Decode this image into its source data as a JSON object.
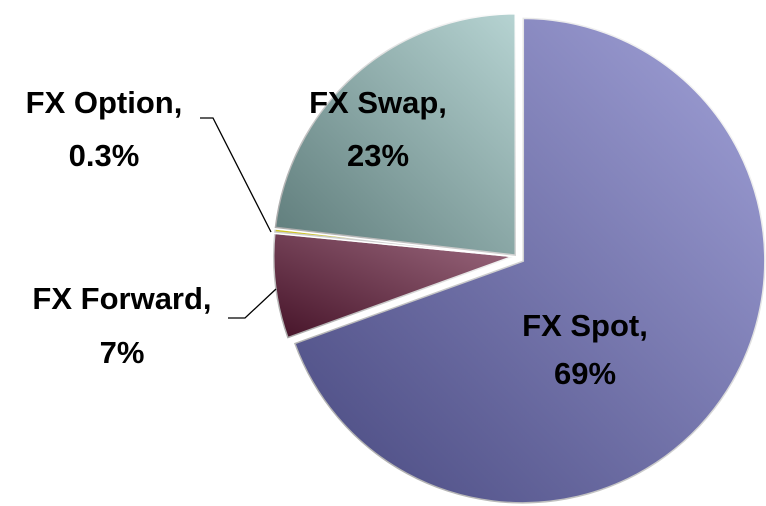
{
  "chart_data": {
    "type": "pie",
    "categories": [
      "FX Spot,",
      "FX Forward,",
      "FX Option,",
      "FX Swap,"
    ],
    "values": [
      69,
      7,
      0.3,
      23
    ],
    "value_labels": [
      "69%",
      "7%",
      "0.3%",
      "23%"
    ],
    "colors": [
      "#6f70c4",
      "#6b1d3e",
      "#fff000",
      "#8fbcba"
    ]
  }
}
